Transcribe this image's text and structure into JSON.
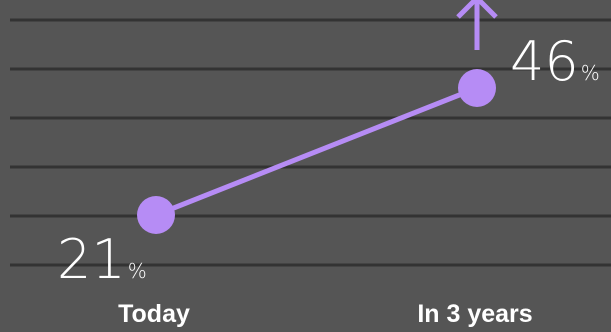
{
  "colors": {
    "background": "#555555",
    "gridline": "#333333",
    "accent": "#b68cf5",
    "text": "#ffffff"
  },
  "chart_data": {
    "type": "line",
    "categories": [
      "Today",
      "In 3 years"
    ],
    "series": [
      {
        "values": [
          21,
          46
        ]
      }
    ],
    "data_labels": [
      {
        "value": "21",
        "unit": "%"
      },
      {
        "value": "46",
        "unit": "%"
      }
    ],
    "trend_icon": "arrow-up-icon",
    "grid": true
  }
}
